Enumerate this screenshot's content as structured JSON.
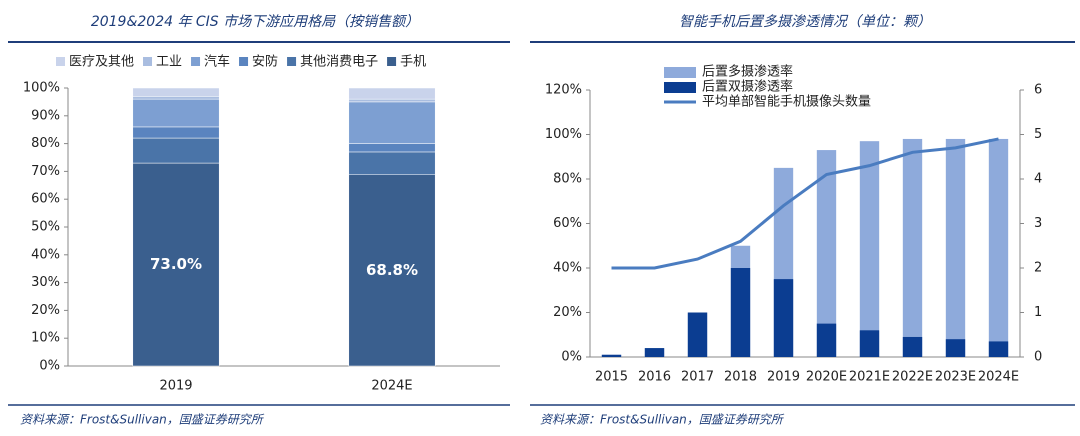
{
  "chart_data": [
    {
      "type": "bar",
      "stacked": true,
      "title": "2019&2024 年 CIS 市场下游应用格局（按销售额）",
      "source": "资料来源：Frost&Sullivan，国盛证券研究所",
      "categories": [
        "2019",
        "2024E"
      ],
      "series": [
        {
          "name": "医疗及其他",
          "color": "#c9d3eb",
          "values": [
            3,
            4
          ]
        },
        {
          "name": "工业",
          "color": "#a9bde0",
          "values": [
            1,
            1
          ]
        },
        {
          "name": "汽车",
          "color": "#7d9fd2",
          "values": [
            10,
            15
          ]
        },
        {
          "name": "安防",
          "color": "#5a84bf",
          "values": [
            4,
            3
          ]
        },
        {
          "name": "其他消费电子",
          "color": "#4a74a8",
          "values": [
            9,
            8.2
          ]
        },
        {
          "name": "手机",
          "color": "#3a5f8e",
          "values": [
            73.0,
            68.8
          ],
          "value_labels": [
            "73.0%",
            "68.8%"
          ]
        }
      ],
      "ylim": [
        0,
        100
      ],
      "yticks": [
        {
          "value": 0,
          "label": "0%"
        },
        {
          "value": 10,
          "label": "10%"
        },
        {
          "value": 20,
          "label": "20%"
        },
        {
          "value": 30,
          "label": "30%"
        },
        {
          "value": 40,
          "label": "40%"
        },
        {
          "value": 50,
          "label": "50%"
        },
        {
          "value": 60,
          "label": "60%"
        },
        {
          "value": 70,
          "label": "70%"
        },
        {
          "value": 80,
          "label": "80%"
        },
        {
          "value": 90,
          "label": "90%"
        },
        {
          "value": 100,
          "label": "100%"
        }
      ],
      "grid": false,
      "legend": "top"
    },
    {
      "type": "bar",
      "stacked": false,
      "title": "智能手机后置多摄渗透情况（单位：颗）",
      "source": "资料来源：Frost&Sullivan，国盛证券研究所",
      "categories": [
        "2015",
        "2016",
        "2017",
        "2018",
        "2019",
        "2020E",
        "2021E",
        "2022E",
        "2023E",
        "2024E"
      ],
      "series": [
        {
          "name": "后置多摄渗透率",
          "color": "#8eaadb",
          "values": [
            1,
            4,
            20,
            50,
            85,
            93,
            97,
            98,
            98,
            98
          ]
        },
        {
          "name": "后置双摄渗透率",
          "color": "#0b3d91",
          "values": [
            1,
            4,
            20,
            40,
            35,
            15,
            12,
            9,
            8,
            7
          ]
        },
        {
          "name": "平均单部智能手机摄像头数量",
          "color": "#4a7cc0",
          "type": "line",
          "axis": "y2",
          "values": [
            2,
            2,
            2.2,
            2.6,
            3.4,
            4.1,
            4.3,
            4.6,
            4.7,
            4.9
          ]
        }
      ],
      "ylim": [
        0,
        120
      ],
      "yticks": [
        {
          "value": 0,
          "label": "0%"
        },
        {
          "value": 20,
          "label": "20%"
        },
        {
          "value": 40,
          "label": "40%"
        },
        {
          "value": 60,
          "label": "60%"
        },
        {
          "value": 80,
          "label": "80%"
        },
        {
          "value": 100,
          "label": "100%"
        },
        {
          "value": 120,
          "label": "120%"
        }
      ],
      "y2lim": [
        0,
        6
      ],
      "y2ticks": [
        0,
        1,
        2,
        3,
        4,
        5,
        6
      ],
      "grid": false,
      "legend": "top"
    }
  ]
}
